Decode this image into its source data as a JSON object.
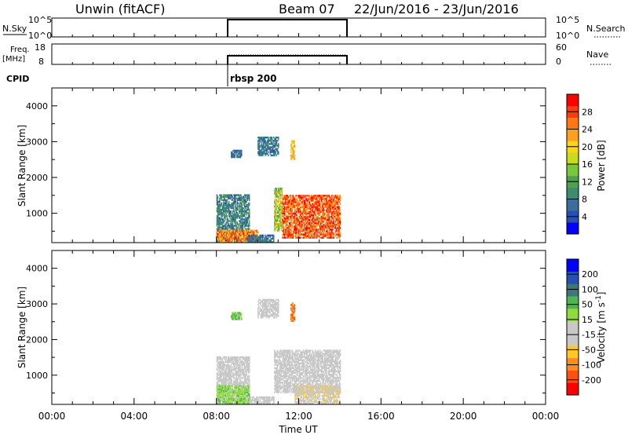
{
  "header": {
    "station": "Unwin (fitACF)",
    "beam": "Beam 07",
    "date_range": "22/Jun/2016 - 23/Jun/2016"
  },
  "aux": {
    "nsky_label": "N.Sky",
    "nsky_ticks": [
      "10^5",
      "10^0"
    ],
    "nsearch_label": "N.Search",
    "nsearch_ticks": [
      "10^5",
      "10^0"
    ],
    "freq_label_1": "Freq.",
    "freq_label_2": "[MHz]",
    "freq_ticks": [
      "18",
      "8"
    ],
    "nave_label": "Nave",
    "nave_ticks": [
      "60",
      "0"
    ],
    "cpid_label": "CPID",
    "cpid_value": "rbsp 200"
  },
  "colors": {
    "power": [
      "#0000ff",
      "#2850b4",
      "#3c6e9b",
      "#3c8c6e",
      "#50a050",
      "#78c83c",
      "#c8dc1e",
      "#ffd21e",
      "#ffa01e",
      "#ff7814",
      "#ff3c0a",
      "#ff0000"
    ],
    "velocity": [
      "#ff0000",
      "#ff5014",
      "#ff8c1e",
      "#ffc828",
      "#c8c8c8",
      "#c8c8c8",
      "#8cdc3c",
      "#50b450",
      "#3c7878",
      "#2850b4",
      "#0000ff"
    ]
  },
  "chart_data": [
    {
      "type": "heatmap",
      "title": "",
      "xlabel": "",
      "ylabel": "Slant Range [km]",
      "ylim": [
        180,
        4500
      ],
      "yticks": [
        "1000",
        "2000",
        "3000",
        "4000"
      ],
      "colorbar": {
        "label": "Power [dB]",
        "ticks": [
          "4",
          "8",
          "12",
          "16",
          "20",
          "24",
          "28"
        ],
        "range": [
          0,
          30
        ]
      },
      "data_window": [
        "08:00",
        "14:00"
      ],
      "regions": [
        {
          "t": [
            8.0,
            9.6
          ],
          "r": [
            180,
            1500
          ],
          "v": [
            4,
            12
          ]
        },
        {
          "t": [
            8.0,
            10.0
          ],
          "r": [
            180,
            500
          ],
          "v": [
            18,
            28
          ]
        },
        {
          "t": [
            8.7,
            9.2
          ],
          "r": [
            2550,
            2750
          ],
          "v": [
            4,
            8
          ]
        },
        {
          "t": [
            9.5,
            10.8
          ],
          "r": [
            180,
            400
          ],
          "v": [
            4,
            10
          ]
        },
        {
          "t": [
            10.8,
            11.2
          ],
          "r": [
            500,
            1700
          ],
          "v": [
            10,
            22
          ]
        },
        {
          "t": [
            11.2,
            14.0
          ],
          "r": [
            300,
            1500
          ],
          "v": [
            20,
            30
          ]
        },
        {
          "t": [
            10.0,
            11.0
          ],
          "r": [
            2600,
            3100
          ],
          "v": [
            4,
            10
          ]
        },
        {
          "t": [
            11.6,
            11.8
          ],
          "r": [
            2500,
            3000
          ],
          "v": [
            16,
            24
          ]
        }
      ]
    },
    {
      "type": "heatmap",
      "title": "",
      "xlabel": "Time UT",
      "ylabel": "Slant Range [km]",
      "ylim": [
        180,
        4500
      ],
      "yticks": [
        "1000",
        "2000",
        "3000",
        "4000"
      ],
      "xticks": [
        "00:00",
        "04:00",
        "08:00",
        "12:00",
        "16:00",
        "20:00",
        "00:00"
      ],
      "colorbar": {
        "label": "Velocity [m s^-1]",
        "ticks": [
          "-200",
          "-100",
          "-50",
          "-15",
          "15",
          "50",
          "100",
          "200"
        ]
      },
      "data_window": [
        "08:00",
        "14:00"
      ],
      "regions": [
        {
          "t": [
            8.0,
            9.6
          ],
          "r": [
            180,
            1500
          ],
          "v": [
            -15,
            15
          ]
        },
        {
          "t": [
            8.0,
            9.6
          ],
          "r": [
            180,
            700
          ],
          "v": [
            15,
            80
          ]
        },
        {
          "t": [
            9.6,
            10.8
          ],
          "r": [
            180,
            400
          ],
          "v": [
            -15,
            15
          ]
        },
        {
          "t": [
            10.8,
            14.0
          ],
          "r": [
            500,
            1700
          ],
          "v": [
            -15,
            15
          ]
        },
        {
          "t": [
            11.8,
            14.0
          ],
          "r": [
            180,
            700
          ],
          "v": [
            -80,
            -30
          ]
        },
        {
          "t": [
            8.7,
            9.2
          ],
          "r": [
            2550,
            2750
          ],
          "v": [
            50,
            100
          ]
        },
        {
          "t": [
            10.0,
            11.0
          ],
          "r": [
            2600,
            3100
          ],
          "v": [
            -15,
            15
          ]
        },
        {
          "t": [
            11.6,
            11.8
          ],
          "r": [
            2500,
            3000
          ],
          "v": [
            -200,
            -100
          ]
        }
      ]
    }
  ]
}
